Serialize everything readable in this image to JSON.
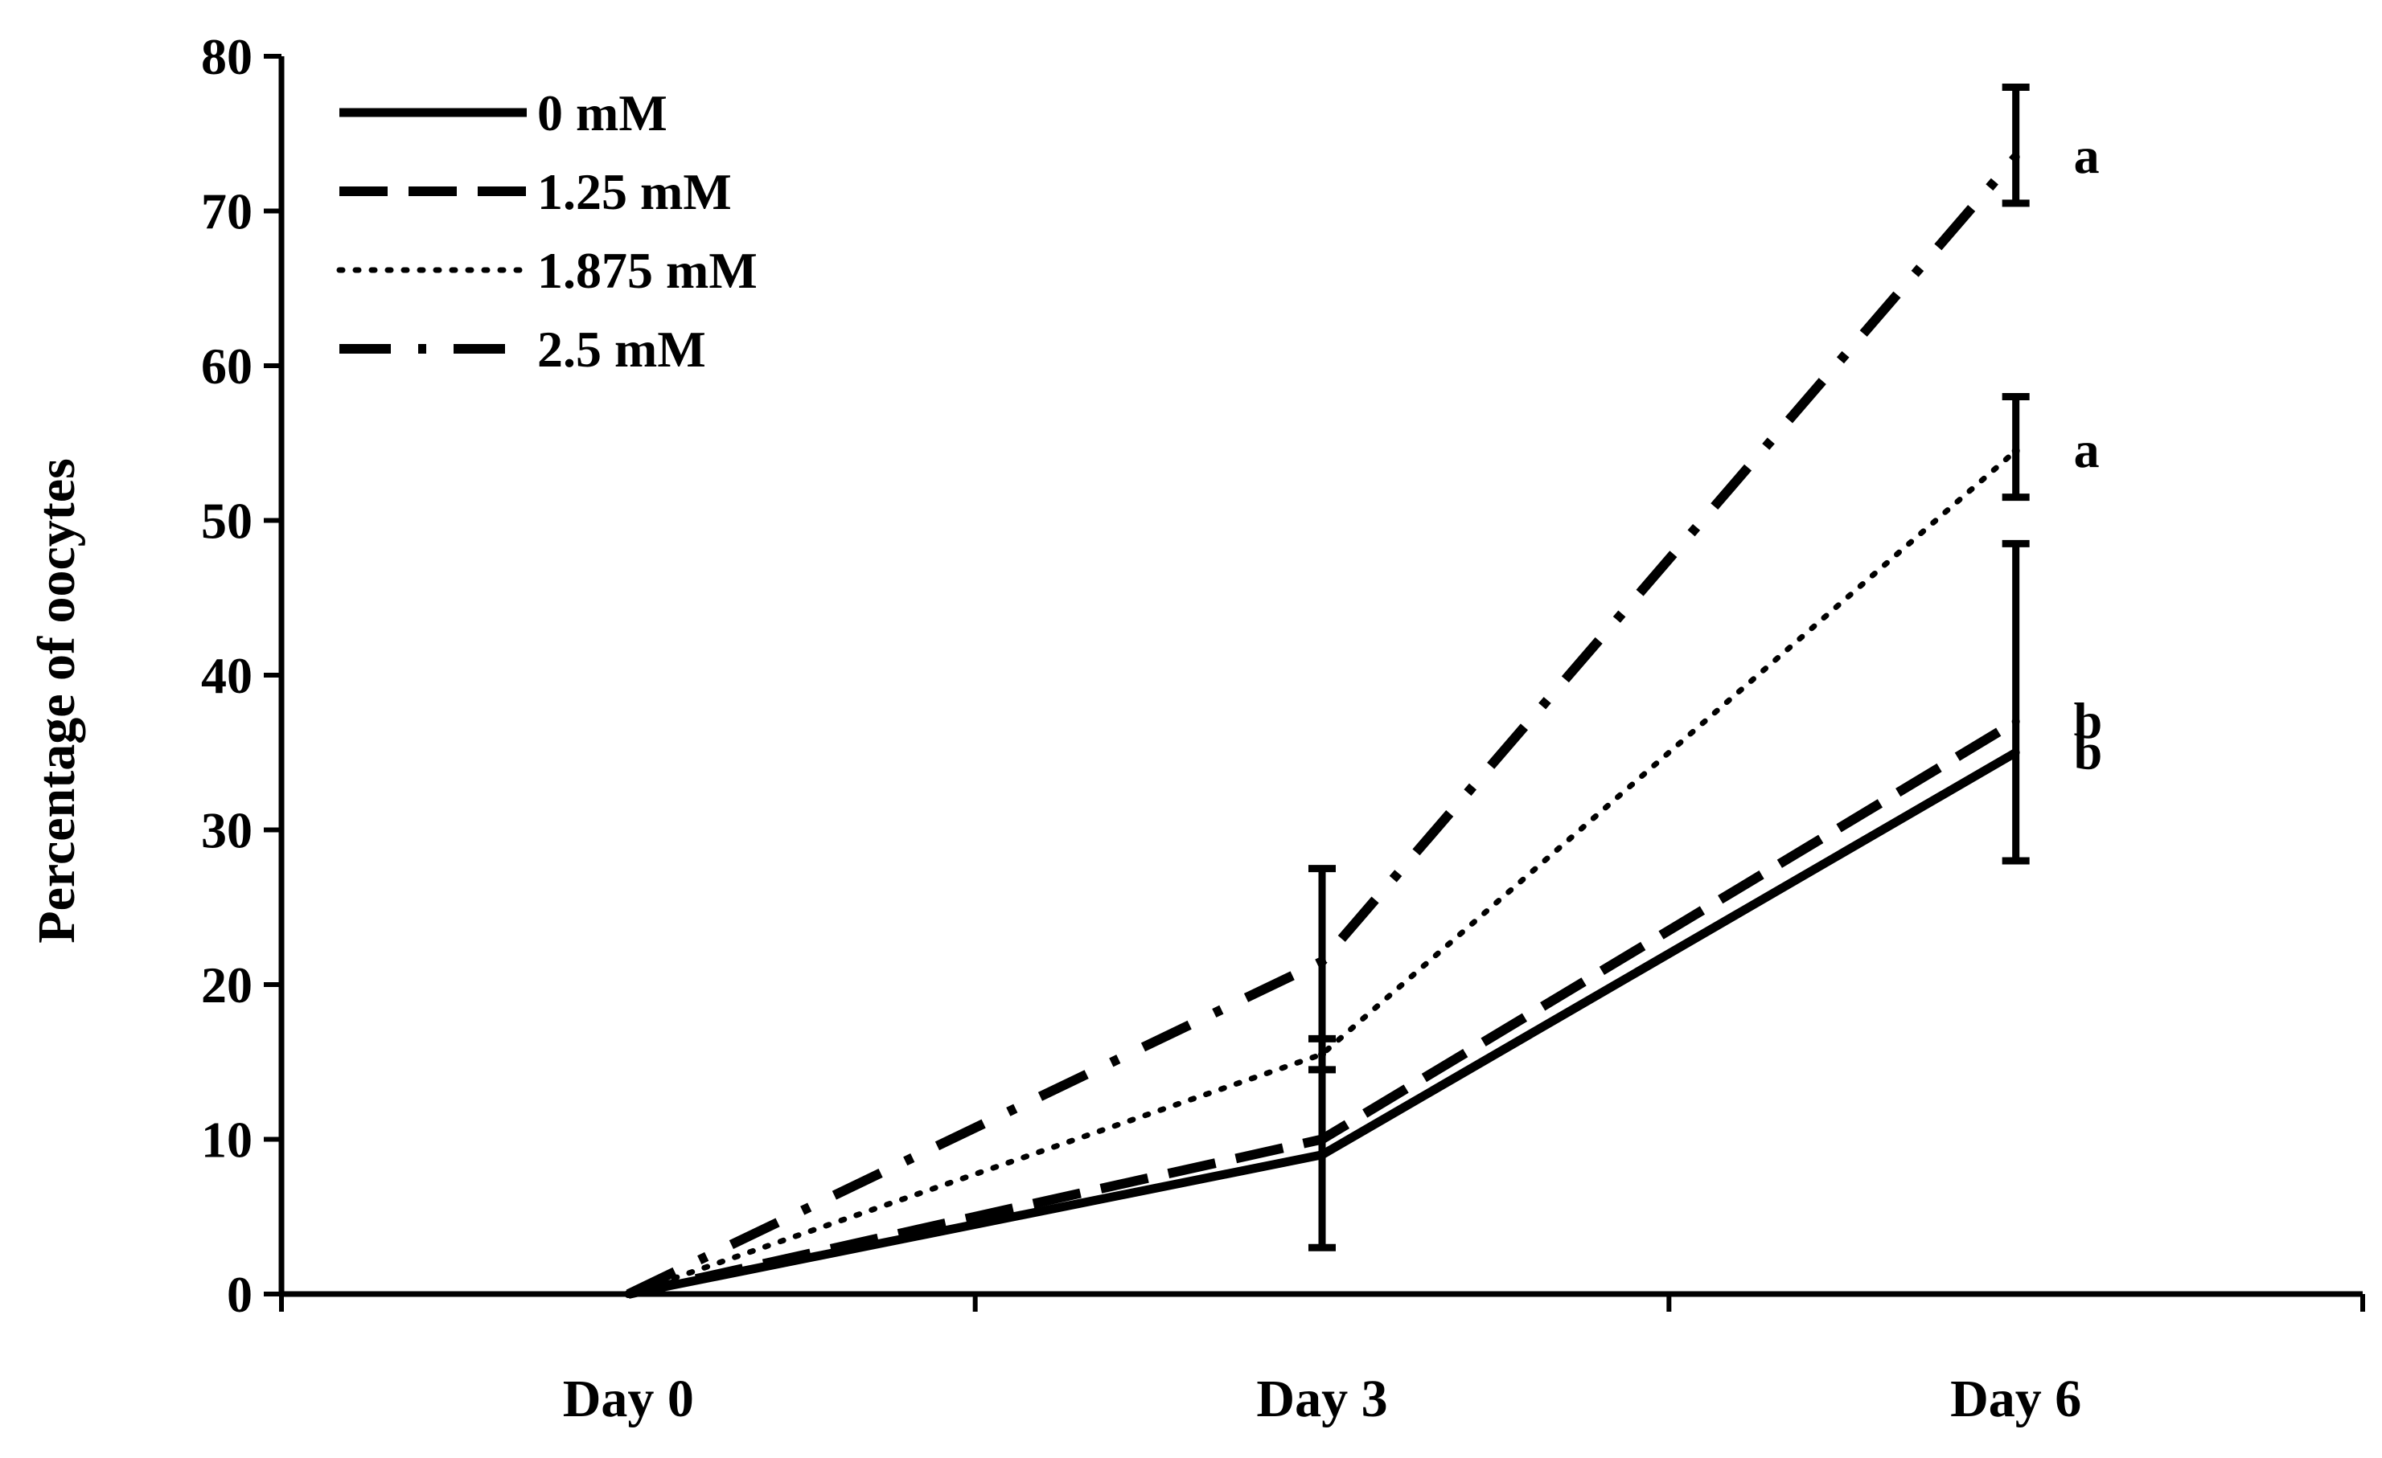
{
  "chart_data": {
    "type": "line",
    "title": "",
    "xlabel": "",
    "ylabel": "Percentage of oocytes",
    "categories": [
      "Day 0",
      "Day 3",
      "Day 6"
    ],
    "ylim": [
      0,
      80
    ],
    "yticks": [
      "0",
      "10",
      "20",
      "30",
      "40",
      "50",
      "60",
      "70",
      "80"
    ],
    "grid": false,
    "legend_position": "top-left",
    "series": [
      {
        "name": "0 mM",
        "style": "solid",
        "values": [
          0,
          9,
          35
        ],
        "error_low": [
          null,
          3,
          28
        ],
        "error_high": [
          null,
          27.5,
          48.5
        ],
        "significance": [
          null,
          null,
          "b"
        ]
      },
      {
        "name": "1.25 mM",
        "style": "dashed",
        "values": [
          0,
          10,
          37
        ],
        "error_low": [
          null,
          null,
          null
        ],
        "error_high": [
          null,
          null,
          null
        ],
        "significance": [
          null,
          null,
          "b"
        ]
      },
      {
        "name": "1.875 mM",
        "style": "dotted",
        "values": [
          0,
          15.5,
          54.5
        ],
        "error_low": [
          null,
          14.5,
          51.5
        ],
        "error_high": [
          null,
          16.5,
          58
        ],
        "significance": [
          null,
          null,
          "a"
        ]
      },
      {
        "name": "2.5 mM",
        "style": "dash-dot",
        "values": [
          0,
          21.5,
          73.5
        ],
        "error_low": [
          null,
          null,
          70.5
        ],
        "error_high": [
          null,
          null,
          78
        ],
        "significance": [
          null,
          null,
          "a"
        ]
      }
    ]
  }
}
